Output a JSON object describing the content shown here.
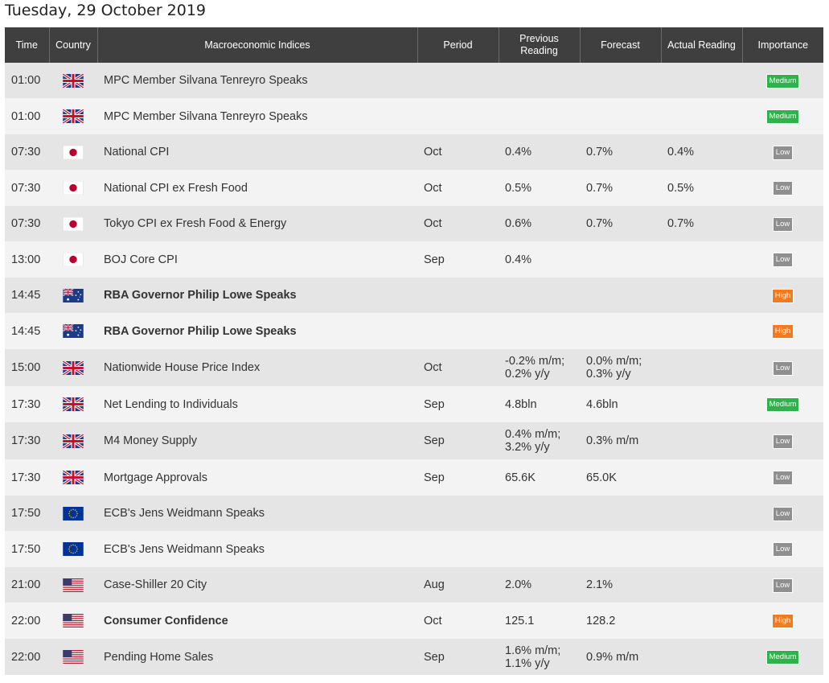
{
  "date": "Tuesday, 29 October 2019",
  "headers": {
    "time": "Time",
    "country": "Country",
    "indices": "Macroeconomic Indices",
    "period": "Period",
    "previous_line1": "Previous",
    "previous_line2": "Reading",
    "forecast": "Forecast",
    "actual": "Actual Reading",
    "importance": "Importance"
  },
  "colors": {
    "header_bg": "#3f3f3f",
    "row_odd": "#e5e5e5",
    "row_even": "#f3f3f3",
    "medium": "#2db34a",
    "low": "#8f8f8f",
    "high": "#f7791e",
    "actual_red": "#e53935"
  },
  "rows": [
    {
      "time": "01:00",
      "country": "uk",
      "event": "MPC Member Silvana Tenreyro Speaks",
      "bold": false,
      "period": "",
      "previous": [],
      "forecast": [],
      "actual": "",
      "actual_red": false,
      "importance": "Medium"
    },
    {
      "time": "01:00",
      "country": "uk",
      "event": "MPC Member Silvana Tenreyro Speaks",
      "bold": false,
      "period": "",
      "previous": [],
      "forecast": [],
      "actual": "",
      "actual_red": false,
      "importance": "Medium"
    },
    {
      "time": "07:30",
      "country": "jp",
      "event": "National CPI",
      "bold": false,
      "period": "Oct",
      "previous": [
        "0.4%"
      ],
      "forecast": [
        "0.7%"
      ],
      "actual": "0.4%",
      "actual_red": true,
      "importance": "Low"
    },
    {
      "time": "07:30",
      "country": "jp",
      "event": "National CPI ex Fresh Food",
      "bold": false,
      "period": "Oct",
      "previous": [
        "0.5%"
      ],
      "forecast": [
        "0.7%"
      ],
      "actual": "0.5%",
      "actual_red": true,
      "importance": "Low"
    },
    {
      "time": "07:30",
      "country": "jp",
      "event": "Tokyo CPI ex Fresh Food & Energy",
      "bold": false,
      "period": "Oct",
      "previous": [
        "0.6%"
      ],
      "forecast": [
        "0.7%"
      ],
      "actual": "0.7%",
      "actual_red": false,
      "importance": "Low"
    },
    {
      "time": "13:00",
      "country": "jp",
      "event": "BOJ Core CPI",
      "bold": false,
      "period": "Sep",
      "previous": [
        "0.4%"
      ],
      "forecast": [],
      "actual": "",
      "actual_red": false,
      "importance": "Low"
    },
    {
      "time": "14:45",
      "country": "au",
      "event": "RBA Governor Philip Lowe Speaks",
      "bold": true,
      "period": "",
      "previous": [],
      "forecast": [],
      "actual": "",
      "actual_red": false,
      "importance": "High"
    },
    {
      "time": "14:45",
      "country": "au",
      "event": "RBA Governor Philip Lowe Speaks",
      "bold": true,
      "period": "",
      "previous": [],
      "forecast": [],
      "actual": "",
      "actual_red": false,
      "importance": "High"
    },
    {
      "time": "15:00",
      "country": "uk",
      "event": "Nationwide House Price Index",
      "bold": false,
      "period": "Oct",
      "previous": [
        "-0.2% m/m;",
        "0.2% y/y"
      ],
      "forecast": [
        "0.0% m/m;",
        "0.3% y/y"
      ],
      "actual": "",
      "actual_red": false,
      "importance": "Low"
    },
    {
      "time": "17:30",
      "country": "uk",
      "event": "Net Lending to Individuals",
      "bold": false,
      "period": "Sep",
      "previous": [
        "4.8bln"
      ],
      "forecast": [
        "4.6bln"
      ],
      "actual": "",
      "actual_red": false,
      "importance": "Medium"
    },
    {
      "time": "17:30",
      "country": "uk",
      "event": "M4 Money Supply",
      "bold": false,
      "period": "Sep",
      "previous": [
        "0.4% m/m;",
        "3.2% y/y"
      ],
      "forecast": [
        "0.3% m/m"
      ],
      "actual": "",
      "actual_red": false,
      "importance": "Low"
    },
    {
      "time": "17:30",
      "country": "uk",
      "event": "Mortgage Approvals",
      "bold": false,
      "period": "Sep",
      "previous": [
        "65.6K"
      ],
      "forecast": [
        "65.0K"
      ],
      "actual": "",
      "actual_red": false,
      "importance": "Low"
    },
    {
      "time": "17:50",
      "country": "eu",
      "event": "ECB's Jens Weidmann Speaks",
      "bold": false,
      "period": "",
      "previous": [],
      "forecast": [],
      "actual": "",
      "actual_red": false,
      "importance": "Low"
    },
    {
      "time": "17:50",
      "country": "eu",
      "event": "ECB's Jens Weidmann Speaks",
      "bold": false,
      "period": "",
      "previous": [],
      "forecast": [],
      "actual": "",
      "actual_red": false,
      "importance": "Low"
    },
    {
      "time": "21:00",
      "country": "us",
      "event": "Case-Shiller 20 City",
      "bold": false,
      "period": "Aug",
      "previous": [
        "2.0%"
      ],
      "forecast": [
        "2.1%"
      ],
      "actual": "",
      "actual_red": false,
      "importance": "Low"
    },
    {
      "time": "22:00",
      "country": "us",
      "event": "Consumer Confidence",
      "bold": true,
      "period": "Oct",
      "previous": [
        "125.1"
      ],
      "forecast": [
        "128.2"
      ],
      "actual": "",
      "actual_red": false,
      "importance": "High"
    },
    {
      "time": "22:00",
      "country": "us",
      "event": "Pending Home Sales",
      "bold": false,
      "period": "Sep",
      "previous": [
        "1.6% m/m;",
        "1.1% y/y"
      ],
      "forecast": [
        "0.9% m/m"
      ],
      "actual": "",
      "actual_red": false,
      "importance": "Medium"
    }
  ]
}
